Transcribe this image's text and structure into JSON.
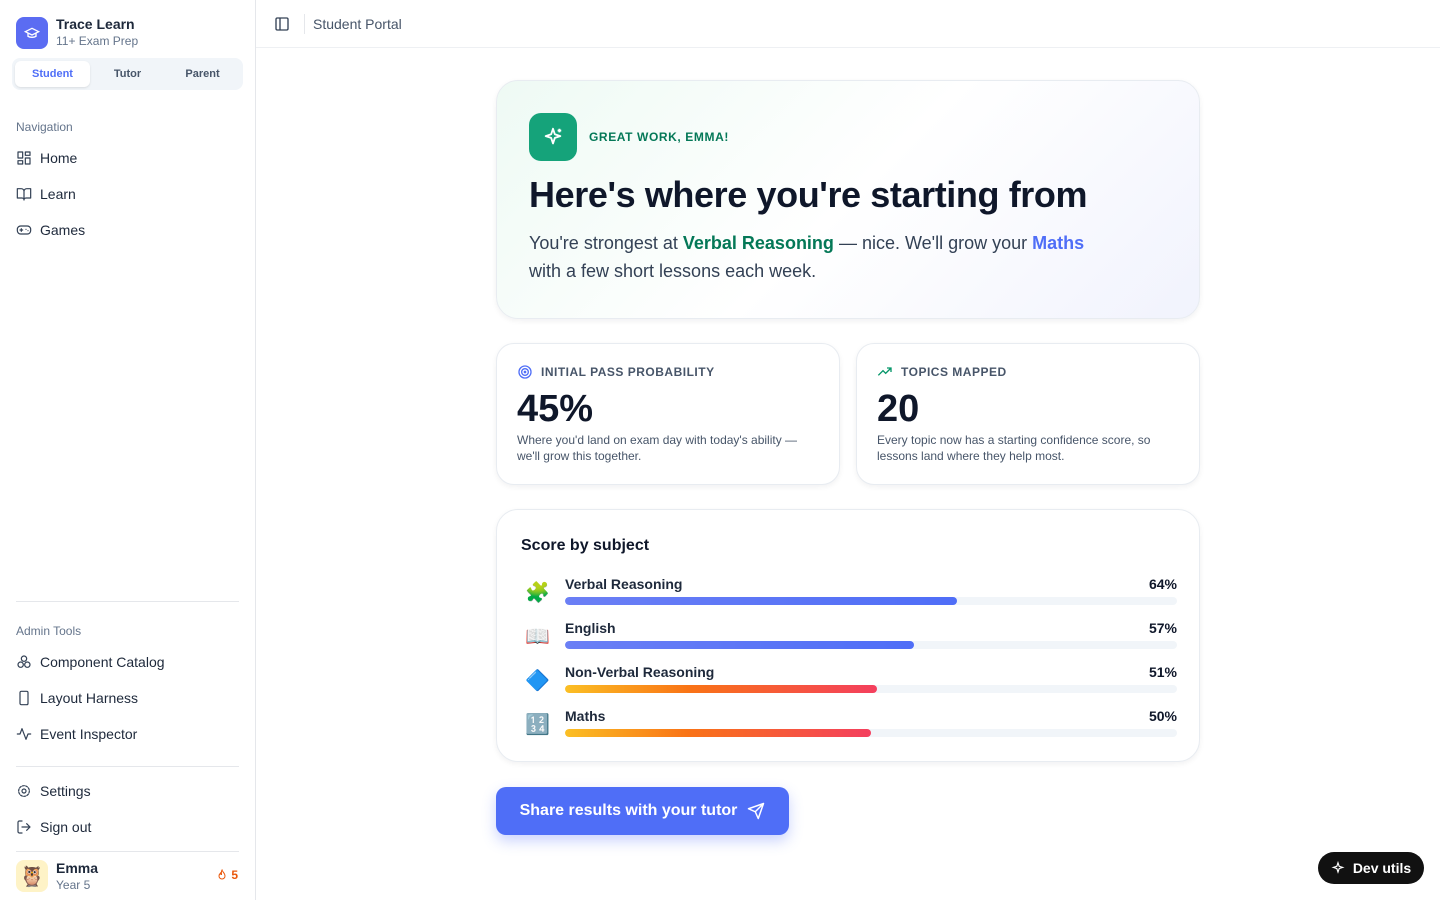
{
  "sidebar": {
    "brand": {
      "name": "Trace Learn",
      "tagline": "11+ Exam Prep"
    },
    "roles": [
      "Student",
      "Tutor",
      "Parent"
    ],
    "navigation": {
      "heading": "Navigation",
      "items": [
        "Home",
        "Learn",
        "Games"
      ]
    },
    "admin": {
      "heading": "Admin Tools",
      "items": [
        "Component Catalog",
        "Layout Harness",
        "Event Inspector"
      ]
    },
    "footer_links": [
      "Settings",
      "Sign out"
    ],
    "user": {
      "avatar": "🦉",
      "name": "Emma",
      "year": "Year 5",
      "streak": 5
    }
  },
  "topbar": {
    "title": "Student Portal"
  },
  "hero": {
    "eyebrow": "GREAT WORK, EMMA!",
    "title": "Here's where you're starting from",
    "text": [
      "You're strongest at ",
      "Verbal Reasoning",
      " — nice. We'll grow your ",
      "Maths",
      " with a few short lessons each week."
    ]
  },
  "stats": [
    {
      "label": "INITIAL PASS PROBABILITY",
      "value": "45%",
      "note": "Where you'd land on exam day with today's ability — we'll grow this together."
    },
    {
      "label": "TOPICS MAPPED",
      "value": 20,
      "note": "Every topic now has a starting confidence score, so lessons land where they help most."
    }
  ],
  "scores": {
    "title": "Score by subject",
    "subjects": [
      {
        "icon": "🧩",
        "name": "Verbal Reasoning",
        "value": 64,
        "value_label": "64%",
        "tone": "blue"
      },
      {
        "icon": "📖",
        "name": "English",
        "value": 57,
        "value_label": "57%",
        "tone": "blue"
      },
      {
        "icon": "🔷",
        "name": "Non-Verbal Reasoning",
        "value": 51,
        "value_label": "51%",
        "tone": "warm"
      },
      {
        "icon": "🔢",
        "name": "Maths",
        "value": 50,
        "value_label": "50%",
        "tone": "warm"
      }
    ]
  },
  "cta": "Share results with your tutor",
  "dev_button": "Dev utils"
}
